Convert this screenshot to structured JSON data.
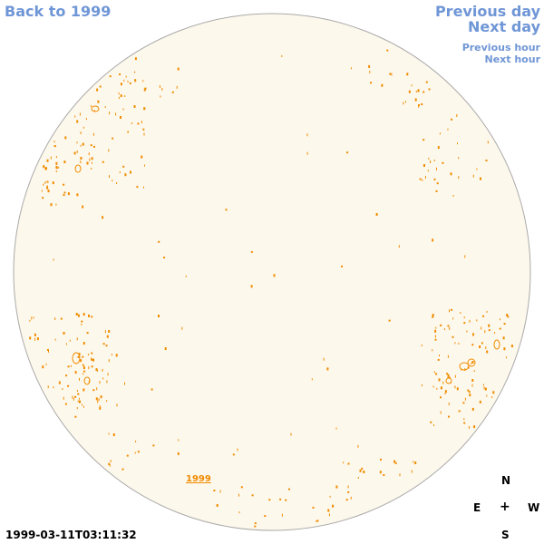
{
  "nav": {
    "back": "Back to 1999",
    "previous_day": "Previous day",
    "next_day": "Next day",
    "previous_hour": "Previous hour",
    "next_hour": "Next hour"
  },
  "timestamp": "1999-03-11T03:11:32",
  "disk": {
    "year_label": "1999",
    "fill_color": "#fdf8ec",
    "border_color": "#aaaaaa",
    "feature_color": "#f08c00"
  },
  "compass": {
    "north": "N",
    "east": "E",
    "west": "W",
    "south": "S",
    "center": "+"
  },
  "colors": {
    "link": "#6f96d6"
  }
}
